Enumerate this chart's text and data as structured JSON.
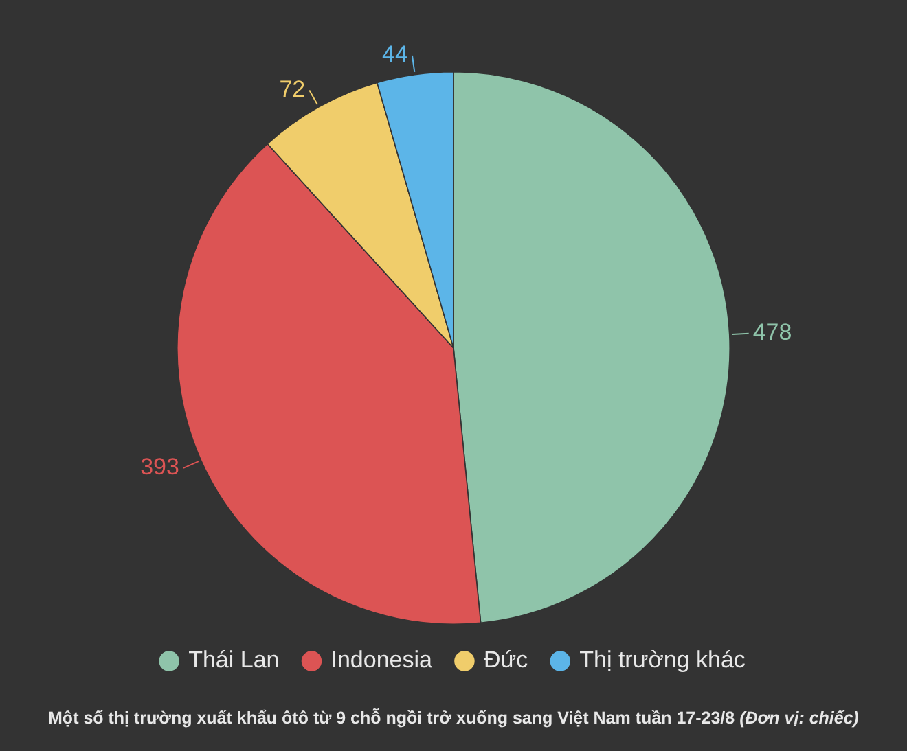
{
  "chart_data": {
    "type": "pie",
    "title": "Một số thị trường xuất khẩu ôtô từ 9 chỗ ngồi trở xuống sang Việt Nam tuần 17-23/8",
    "categories": [
      "Thái Lan",
      "Indonesia",
      "Đức",
      "Thị trường khác"
    ],
    "values": [
      478,
      393,
      72,
      44
    ],
    "colors": [
      "#8fc4aa",
      "#dc5454",
      "#f0cd6b",
      "#5cb5e8"
    ],
    "data_labels": true,
    "legend": "bottom",
    "annotations": [
      "(Đơn vị: chiếc)"
    ]
  }
}
